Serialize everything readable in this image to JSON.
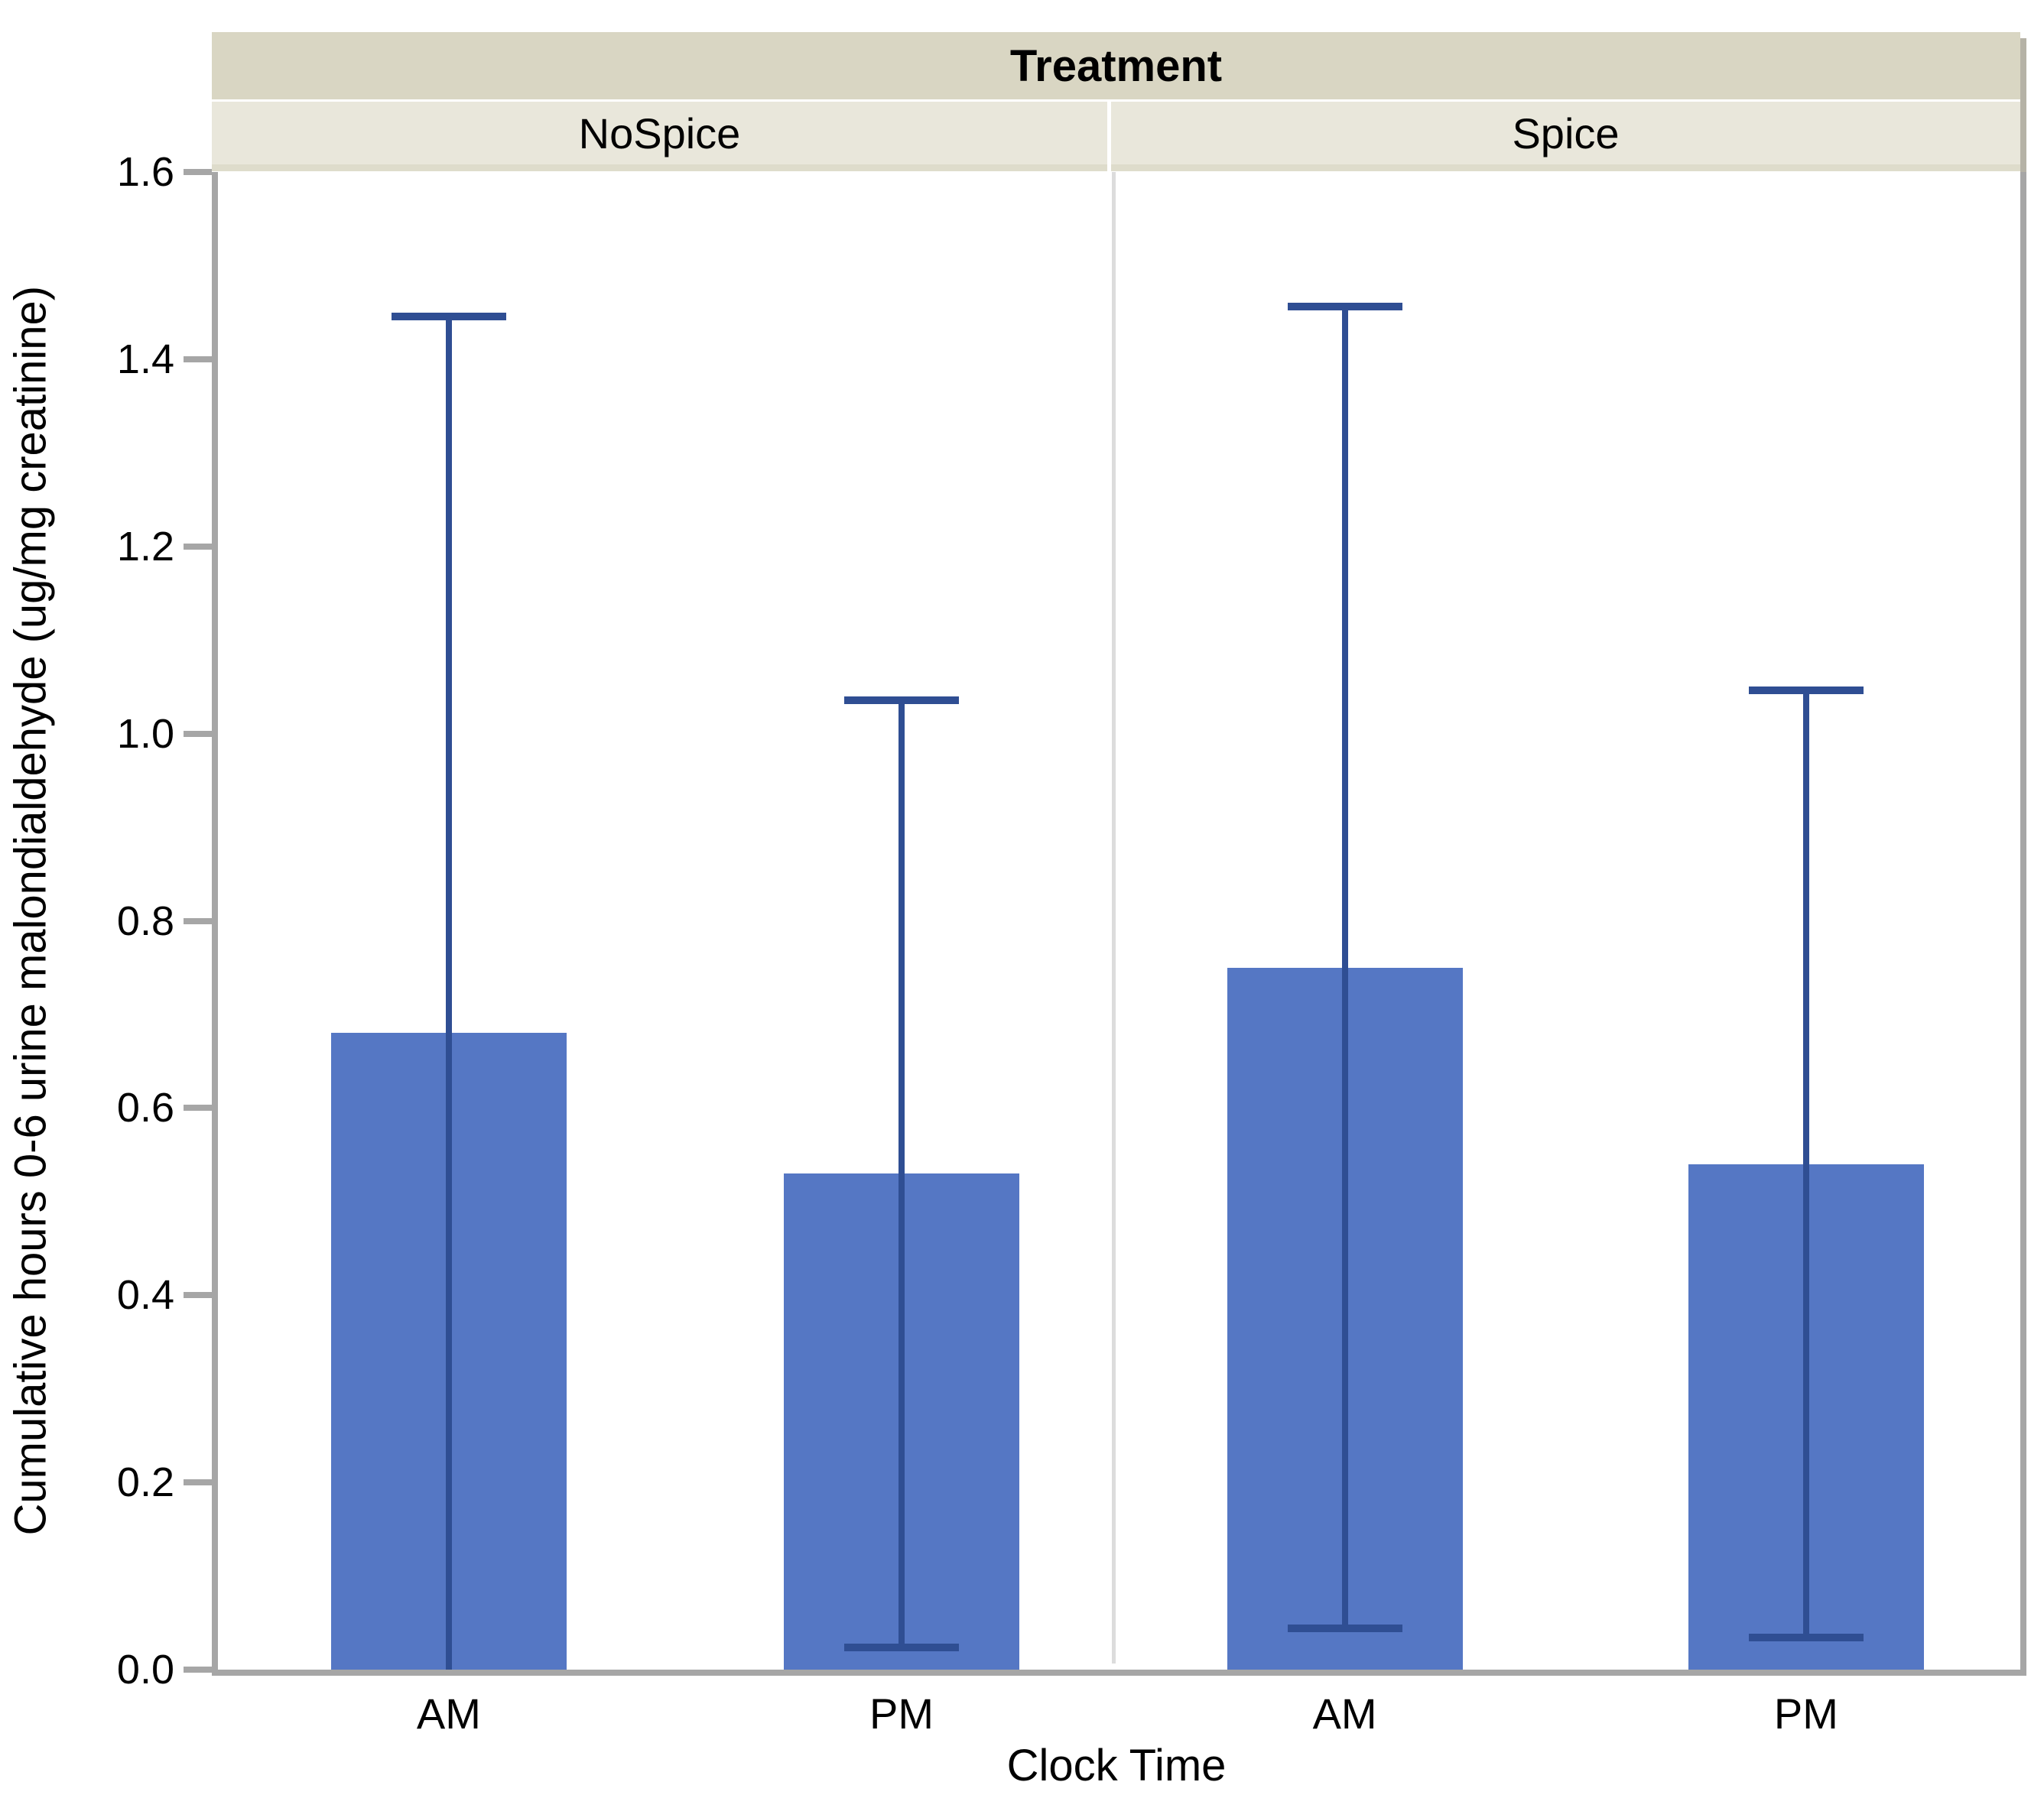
{
  "header": {
    "group_title": "Treatment",
    "panels": [
      "NoSpice",
      "Spice"
    ]
  },
  "axes": {
    "x_label": "Clock Time",
    "y_label": "Cumulative hours 0-6 urine malondialdehyde (ug/mg creatinine)",
    "y_ticks": [
      "0.0",
      "0.2",
      "0.4",
      "0.6",
      "0.8",
      "1.0",
      "1.2",
      "1.4",
      "1.6"
    ]
  },
  "chart_data": {
    "type": "bar",
    "panel_variable": "Treatment",
    "xlabel": "Clock Time",
    "ylabel": "Cumulative hours 0-6 urine malondialdehyde (ug/mg creatinine)",
    "ylim": [
      0,
      1.6
    ],
    "ytick_step": 0.2,
    "grid": false,
    "panels": [
      {
        "name": "NoSpice",
        "categories": [
          "AM",
          "PM"
        ],
        "means": [
          0.68,
          0.53
        ],
        "error_upper": [
          1.45,
          1.04
        ],
        "error_lower": [
          0.0,
          0.02
        ],
        "lower_cap": [
          false,
          true
        ]
      },
      {
        "name": "Spice",
        "categories": [
          "AM",
          "PM"
        ],
        "means": [
          0.75,
          0.54
        ],
        "error_upper": [
          1.46,
          1.05
        ],
        "error_lower": [
          0.04,
          0.03
        ],
        "lower_cap": [
          true,
          true
        ]
      }
    ]
  },
  "colors": {
    "bar_fill": "#5577C4",
    "error_bar": "#2F4E93",
    "axis_line": "#A6A6A6",
    "panel_divider": "#DCDCDC",
    "group_band_bg": "#D9D6C3",
    "panel_band_bg": "#E9E7DB",
    "panel_band_strip": "#DEDCCB",
    "band_shadow": "#B5B2A6",
    "text": "#000000"
  }
}
